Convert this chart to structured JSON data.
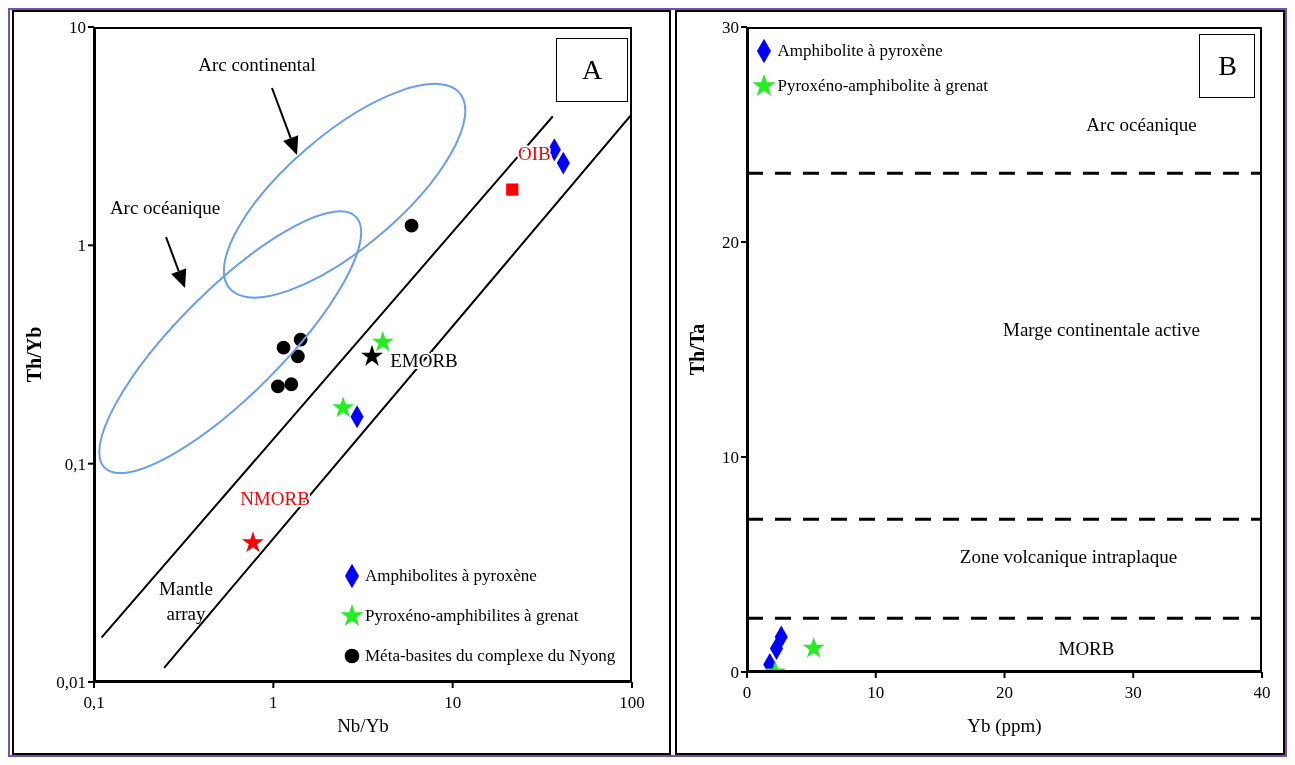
{
  "chart_data": [
    {
      "type": "scatter",
      "xlabel": "Nb/Yb",
      "ylabel": "Th/Yb",
      "log": "xy",
      "xlim": [
        0.1,
        100
      ],
      "ylim": [
        0.01,
        10
      ],
      "xticks": [
        {
          "value": 0.1,
          "label": "0,1"
        },
        1,
        10,
        100
      ],
      "yticks": [
        {
          "value": 0.01,
          "label": "0,01"
        },
        {
          "value": 0.1,
          "label": "0,1"
        },
        1,
        10
      ],
      "legend": "bottom right",
      "annotations": [
        "Arc continental",
        "Arc océanique",
        "Mantle array",
        "A",
        {
          "text": "OIB",
          "x": 21.5,
          "y": 1.8
        },
        {
          "text": "NMORB",
          "x": 0.77,
          "y": 0.0434
        },
        {
          "text": "EMORB",
          "x": 3.55,
          "y": 0.31
        }
      ],
      "series": [
        {
          "name": "Amphibolites à pyroxène",
          "color": "#0000ff",
          "marker": "diamond",
          "x": [
            36.9,
            41.4,
            2.93
          ],
          "values": [
            2.74,
            2.38,
            0.164
          ]
        },
        {
          "name": "Pyroxéno-amphibilites à grenat",
          "color": "#22ee22",
          "marker": "star",
          "x": [
            4.08,
            2.45
          ],
          "values": [
            0.36,
            0.18
          ]
        },
        {
          "name": "Méta-basites du complexe du Nyong",
          "color": "#000000",
          "marker": "circle",
          "x": [
            5.9,
            1.14,
            1.42,
            1.37,
            1.06,
            1.26
          ],
          "values": [
            1.23,
            0.34,
            0.37,
            0.31,
            0.226,
            0.231
          ]
        },
        {
          "color": "#ff0000",
          "marker": "square",
          "x": [
            21.5
          ],
          "values": [
            1.8
          ]
        },
        {
          "color": "#ff0000",
          "marker": "star",
          "x": [
            0.77
          ],
          "values": [
            0.0434
          ]
        },
        {
          "color": "#000000",
          "marker": "star",
          "x": [
            3.55
          ],
          "values": [
            0.31
          ]
        },
        {
          "type": "line",
          "color": "#000000",
          "x": [
            0.111,
            35.9
          ],
          "values": [
            0.0161,
            3.87
          ]
        },
        {
          "type": "line",
          "color": "#000000",
          "x": [
            0.248,
            100
          ],
          "values": [
            0.0117,
            4.0
          ]
        }
      ]
    },
    {
      "type": "scatter",
      "xlabel": "Yb (ppm)",
      "ylabel": "Th/Ta",
      "xlim": [
        0,
        40
      ],
      "ylim": [
        0,
        30
      ],
      "xticks": [
        0,
        10,
        20,
        30,
        40
      ],
      "yticks": [
        0,
        10,
        20,
        30
      ],
      "legend": "top left",
      "ref_lines": [
        {
          "axis": "y",
          "value": 23.2,
          "color": "#000000",
          "line_style": "dashed"
        },
        {
          "axis": "y",
          "value": 7.1,
          "color": "#000000",
          "line_style": "dashed"
        },
        {
          "axis": "y",
          "value": 2.5,
          "color": "#000000",
          "line_style": "dashed"
        }
      ],
      "annotations": [
        "Arc océanique",
        "Marge continentale active",
        "Zone volcanique intraplaque",
        "MORB",
        "B"
      ],
      "series": [
        {
          "name": "Amphibolite à pyroxène",
          "color": "#0000ff",
          "marker": "diamond",
          "x": [
            1.77,
            2.29,
            2.66
          ],
          "values": [
            0.35,
            1.09,
            1.63
          ]
        },
        {
          "name": "Pyroxéno-amphibolite à grenat",
          "color": "#22ee22",
          "marker": "star",
          "x": [
            2.19,
            5.18
          ],
          "values": [
            0,
            1.1
          ]
        }
      ]
    }
  ]
}
